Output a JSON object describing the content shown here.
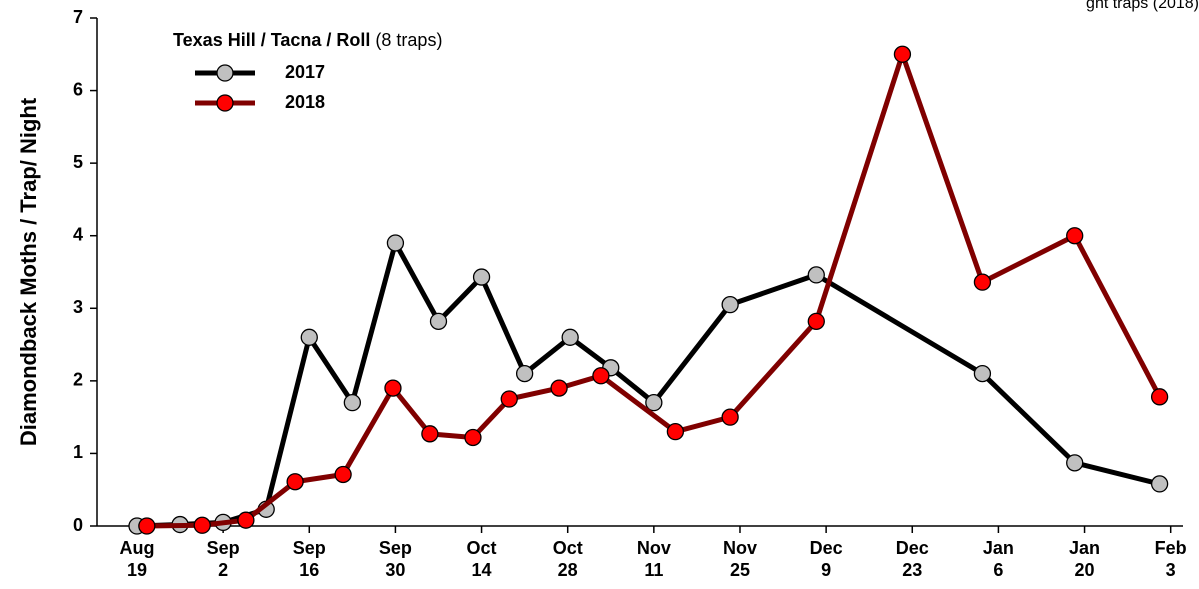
{
  "chart_data": {
    "type": "line",
    "annotation": "ght traps (2018)",
    "ylabel": "Diamondback Moths / Trap/ Night",
    "legend_title": "Texas Hill / Tacna / Roll",
    "legend_subtitle": "(8 traps)",
    "legend": "upper left",
    "xlim": [
      -6.5,
      170
    ],
    "xticks": [
      {
        "value": 0,
        "label": "Aug 19"
      },
      {
        "value": 14,
        "label": "Sep 2"
      },
      {
        "value": 28,
        "label": "Sep 16"
      },
      {
        "value": 42,
        "label": "Sep 30"
      },
      {
        "value": 56,
        "label": "Oct 14"
      },
      {
        "value": 70,
        "label": "Oct 28"
      },
      {
        "value": 84,
        "label": "Nov 11"
      },
      {
        "value": 98,
        "label": "Nov 25"
      },
      {
        "value": 112,
        "label": "Dec 9"
      },
      {
        "value": 126,
        "label": "Dec 23"
      },
      {
        "value": 140,
        "label": "Jan 6"
      },
      {
        "value": 154,
        "label": "Jan 20"
      },
      {
        "value": 168,
        "label": "Feb 3"
      }
    ],
    "ylim": [
      0,
      7
    ],
    "yticks": [
      0,
      1,
      2,
      3,
      4,
      5,
      6,
      7
    ],
    "series": [
      {
        "name": "2017",
        "color": "#000000",
        "marker_color": "#c0c0c0",
        "x": [
          0,
          7,
          14,
          21,
          28,
          35,
          42,
          49,
          56,
          63,
          70.4,
          77,
          84,
          96.4,
          110.4,
          137.4,
          152.4,
          166.2
        ],
        "values": [
          0,
          0.02,
          0.05,
          0.23,
          2.6,
          1.7,
          3.9,
          2.82,
          3.43,
          2.1,
          2.6,
          2.18,
          1.7,
          3.05,
          3.46,
          2.1,
          0.87,
          0.58
        ]
      },
      {
        "name": "2018",
        "color": "#800000",
        "marker_color": "#ff0000",
        "x": [
          1.6,
          10.6,
          17.7,
          25.7,
          33.5,
          41.6,
          47.6,
          54.6,
          60.5,
          68.6,
          75.4,
          87.5,
          96.4,
          110.4,
          124.4,
          137.4,
          152.4,
          166.2
        ],
        "values": [
          0,
          0.01,
          0.08,
          0.61,
          0.71,
          1.9,
          1.27,
          1.22,
          1.75,
          1.9,
          2.07,
          1.3,
          1.5,
          2.82,
          6.5,
          3.36,
          4.0,
          1.78
        ]
      }
    ]
  }
}
